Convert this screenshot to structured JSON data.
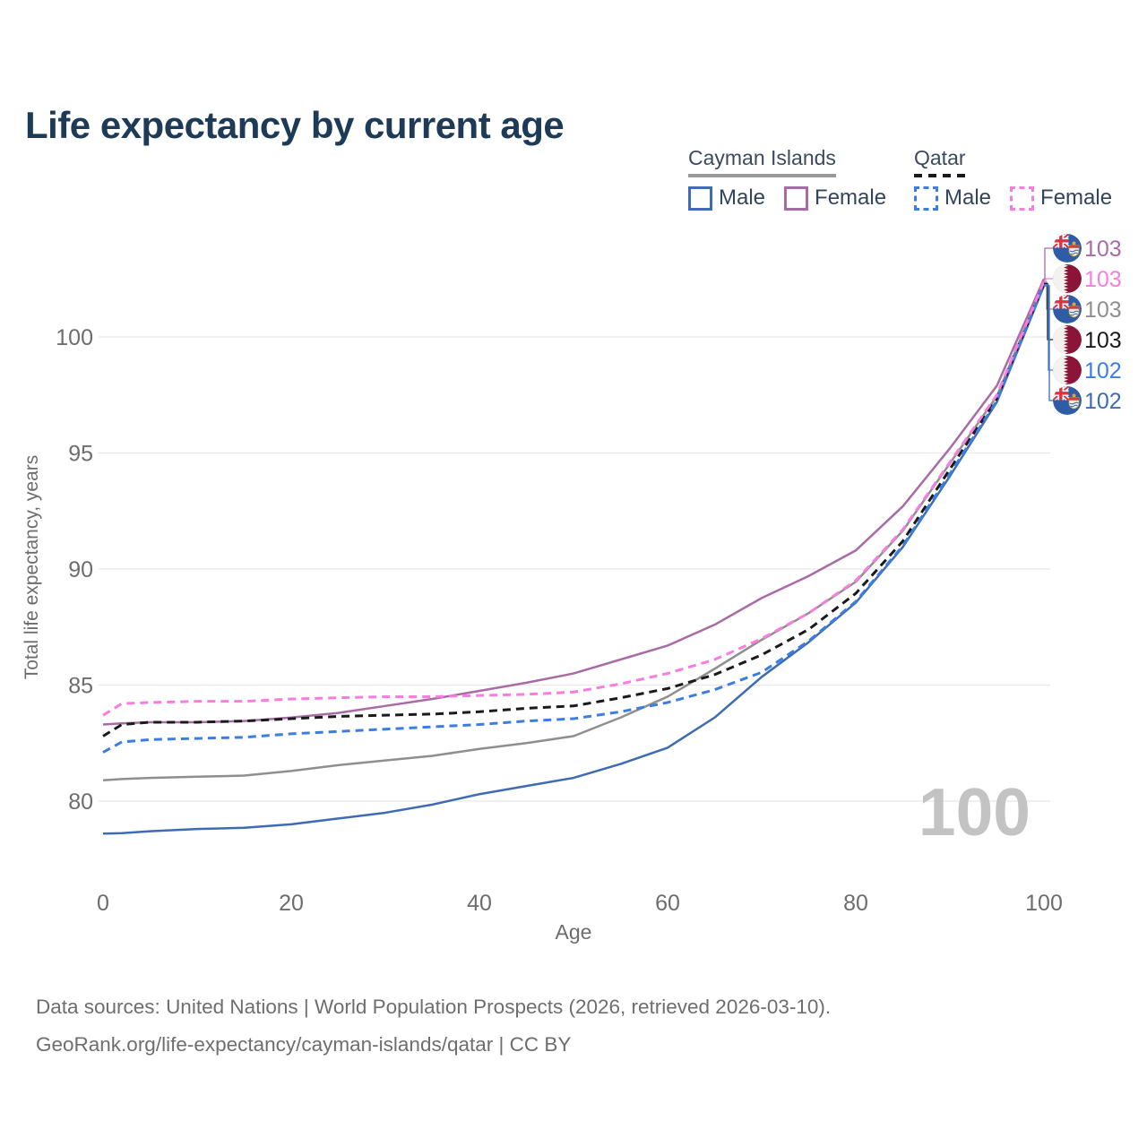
{
  "title": "Life expectancy by current age",
  "legend": {
    "groups": [
      {
        "name": "Cayman Islands",
        "line_style": "solid",
        "line_color": "#9a9a9a",
        "items": [
          {
            "label": "Male",
            "color": "#3d6cb4"
          },
          {
            "label": "Female",
            "color": "#a86ba6"
          }
        ]
      },
      {
        "name": "Qatar",
        "line_style": "dashed",
        "line_color": "#1a1a1a",
        "items": [
          {
            "label": "Male",
            "color": "#3b7de2"
          },
          {
            "label": "Female",
            "color": "#f97ce1"
          }
        ]
      }
    ]
  },
  "footer": {
    "line1": "Data sources: United Nations | World Population Prospects (2026, retrieved 2026-03-10).",
    "line2": "GeoRank.org/life-expectancy/cayman-islands/qatar | CC BY"
  },
  "chart_data": {
    "type": "line",
    "title": "Life expectancy by current age",
    "xlabel": "Age",
    "ylabel": "Total life expectancy, years",
    "x_ticks": [
      0,
      20,
      40,
      60,
      80,
      100
    ],
    "y_ticks": [
      80,
      85,
      90,
      95,
      100
    ],
    "xlim": [
      0,
      100
    ],
    "ylim": [
      77.5,
      103.5
    ],
    "grid": true,
    "legend_position": "top-right",
    "age_indicator": "100",
    "x": [
      0,
      2,
      5,
      10,
      15,
      20,
      25,
      30,
      35,
      40,
      45,
      50,
      55,
      60,
      65,
      70,
      75,
      80,
      85,
      90,
      95,
      100
    ],
    "series": [
      {
        "name": "Cayman Islands Female",
        "country": "cayman-islands",
        "sex": "female",
        "style": "solid",
        "color": "#a86ba6",
        "end_label": "103",
        "values": [
          83.3,
          83.35,
          83.4,
          83.4,
          83.45,
          83.6,
          83.8,
          84.1,
          84.4,
          84.75,
          85.1,
          85.5,
          86.1,
          86.7,
          87.6,
          88.75,
          89.7,
          90.8,
          92.7,
          95.2,
          97.9,
          102.5
        ]
      },
      {
        "name": "Qatar Female",
        "country": "qatar",
        "sex": "female",
        "style": "dashed",
        "color": "#f97ce1",
        "end_label": "103",
        "values": [
          83.7,
          84.2,
          84.25,
          84.3,
          84.3,
          84.4,
          84.45,
          84.5,
          84.5,
          84.55,
          84.6,
          84.7,
          85.05,
          85.5,
          86.1,
          87.0,
          88.1,
          89.5,
          91.7,
          94.6,
          97.5,
          102.4
        ]
      },
      {
        "name": "Cayman Islands Both sexes",
        "country": "cayman-islands",
        "sex": "both",
        "style": "solid",
        "color": "#8f8f8f",
        "end_label": "103",
        "values": [
          80.9,
          80.95,
          81.0,
          81.05,
          81.1,
          81.3,
          81.55,
          81.75,
          81.95,
          82.25,
          82.5,
          82.8,
          83.6,
          84.5,
          85.7,
          86.95,
          88.1,
          89.45,
          91.65,
          94.55,
          97.45,
          102.35
        ]
      },
      {
        "name": "Qatar Both sexes",
        "country": "qatar",
        "sex": "both",
        "style": "dashed",
        "color": "#1a1a1a",
        "end_label": "103",
        "values": [
          82.8,
          83.3,
          83.4,
          83.4,
          83.45,
          83.55,
          83.65,
          83.7,
          83.75,
          83.85,
          84.0,
          84.1,
          84.45,
          84.85,
          85.45,
          86.3,
          87.4,
          88.95,
          91.2,
          94.3,
          97.35,
          102.3
        ]
      },
      {
        "name": "Qatar Male",
        "country": "qatar",
        "sex": "male",
        "style": "dashed",
        "color": "#3b7de2",
        "end_label": "102",
        "values": [
          82.1,
          82.55,
          82.65,
          82.7,
          82.75,
          82.9,
          83.0,
          83.1,
          83.2,
          83.3,
          83.45,
          83.55,
          83.85,
          84.25,
          84.8,
          85.55,
          86.9,
          88.6,
          91.0,
          94.1,
          97.25,
          102.25
        ]
      },
      {
        "name": "Cayman Islands Male",
        "country": "cayman-islands",
        "sex": "male",
        "style": "solid",
        "color": "#3d6cb4",
        "end_label": "102",
        "values": [
          78.6,
          78.62,
          78.7,
          78.8,
          78.85,
          79.0,
          79.25,
          79.5,
          79.85,
          80.3,
          80.65,
          81.0,
          81.6,
          82.3,
          83.6,
          85.35,
          86.85,
          88.55,
          90.95,
          94.0,
          97.2,
          102.2
        ]
      }
    ]
  }
}
